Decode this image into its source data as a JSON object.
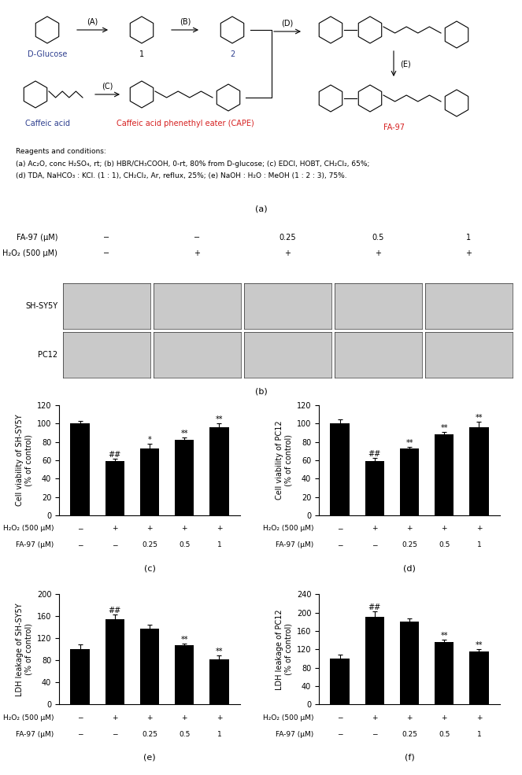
{
  "panel_labels": [
    "(a)",
    "(b)",
    "(c)",
    "(d)",
    "(e)",
    "(f)"
  ],
  "scheme": {
    "compounds": [
      {
        "name": "D-Glucose",
        "color": "#2e3f8f"
      },
      {
        "name": "1",
        "color": "#000000"
      },
      {
        "name": "2",
        "color": "#2e3f8f"
      },
      {
        "name": "Caffeic acid",
        "color": "#2e3f8f"
      },
      {
        "name": "Caffeic acid phenethyl eater (CAPE)",
        "color": "#d62020"
      },
      {
        "name": "FA-97",
        "color": "#d62020"
      }
    ],
    "steps": [
      "(A)",
      "(B)",
      "(C)",
      "(D)",
      "(E)"
    ],
    "reagents_title": "Reagents and conditions:",
    "reagents": [
      "(a) Ac₂O, conc H₂SO₄, rt; (b) HBR/CH₃COOH, 0-rt, 80% from D-glucose; (c) EDCI, HOBT, CH₂Cl₂, 65%;",
      "(d) TDA, NaHCO₃ : KCl. (1 : 1), CH₂Cl₂, Ar, reflux, 25%; (e) NaOH : H₂O : MeOH (1 : 2 : 3), 75%."
    ]
  },
  "micrographs": {
    "conditions": [
      {
        "label": "FA-97 (μM)",
        "values": [
          "−",
          "−",
          "0.25",
          "0.5",
          "1"
        ]
      },
      {
        "label": "H₂O₂ (500 μM)",
        "values": [
          "−",
          "+",
          "+",
          "+",
          "+"
        ]
      }
    ],
    "rows": [
      "SH-SY5Y",
      "PC12"
    ]
  },
  "chart_data": [
    {
      "type": "bar",
      "ylabel": "Cell viability of SH-SY5Y\n(% of control)",
      "categories": [
        null,
        null,
        null,
        null,
        null
      ],
      "values": [
        100,
        59,
        73,
        82,
        96
      ],
      "errors": [
        3,
        3,
        5,
        3,
        4
      ],
      "significance": [
        null,
        "##",
        "*",
        "**",
        "**"
      ],
      "conditions": [
        {
          "label": "H₂O₂ (500 μM)",
          "values": [
            "−",
            "+",
            "+",
            "+",
            "+"
          ]
        },
        {
          "label": "FA-97 (μM)",
          "values": [
            "−",
            "−",
            "0.25",
            "0.5",
            "1"
          ]
        }
      ],
      "ylim": [
        0,
        120
      ],
      "yticks": [
        0,
        20,
        40,
        60,
        80,
        100,
        120
      ],
      "color": "#000000"
    },
    {
      "type": "bar",
      "ylabel": "Cell viability of PC12\n(% of control)",
      "categories": [
        null,
        null,
        null,
        null,
        null
      ],
      "values": [
        100,
        59,
        73,
        88,
        96
      ],
      "errors": [
        5,
        4,
        2,
        3,
        6
      ],
      "significance": [
        null,
        "##",
        "**",
        "**",
        "**"
      ],
      "conditions": [
        {
          "label": "H₂O₂ (500 μM)",
          "values": [
            "−",
            "+",
            "+",
            "+",
            "+"
          ]
        },
        {
          "label": "FA-97 (μM)",
          "values": [
            "−",
            "−",
            "0.25",
            "0.5",
            "1"
          ]
        }
      ],
      "ylim": [
        0,
        120
      ],
      "yticks": [
        0,
        20,
        40,
        60,
        80,
        100,
        120
      ],
      "color": "#000000"
    },
    {
      "type": "bar",
      "ylabel": "LDH leakage of SH-SY5Y\n(% of control)",
      "categories": [
        null,
        null,
        null,
        null,
        null
      ],
      "values": [
        101,
        155,
        137,
        107,
        82
      ],
      "errors": [
        8,
        8,
        8,
        4,
        7
      ],
      "significance": [
        null,
        "##",
        null,
        "**",
        "**"
      ],
      "conditions": [
        {
          "label": "H₂O₂ (500 μM)",
          "values": [
            "−",
            "+",
            "+",
            "+",
            "+"
          ]
        },
        {
          "label": "FA-97 (μM)",
          "values": [
            "−",
            "−",
            "0.25",
            "0.5",
            "1"
          ]
        }
      ],
      "ylim": [
        0,
        200
      ],
      "yticks": [
        0,
        40,
        80,
        120,
        160,
        200
      ],
      "color": "#000000"
    },
    {
      "type": "bar",
      "ylabel": "LDH leakage of PC12\n(% of control)",
      "categories": [
        null,
        null,
        null,
        null,
        null
      ],
      "values": [
        100,
        191,
        180,
        136,
        115
      ],
      "errors": [
        8,
        12,
        8,
        5,
        6
      ],
      "significance": [
        null,
        "##",
        null,
        "**",
        "**"
      ],
      "conditions": [
        {
          "label": "H₂O₂ (500 μM)",
          "values": [
            "−",
            "+",
            "+",
            "+",
            "+"
          ]
        },
        {
          "label": "FA-97 (μM)",
          "values": [
            "−",
            "−",
            "0.25",
            "0.5",
            "1"
          ]
        }
      ],
      "ylim": [
        0,
        240
      ],
      "yticks": [
        0,
        40,
        80,
        120,
        160,
        200,
        240
      ],
      "color": "#000000"
    }
  ]
}
